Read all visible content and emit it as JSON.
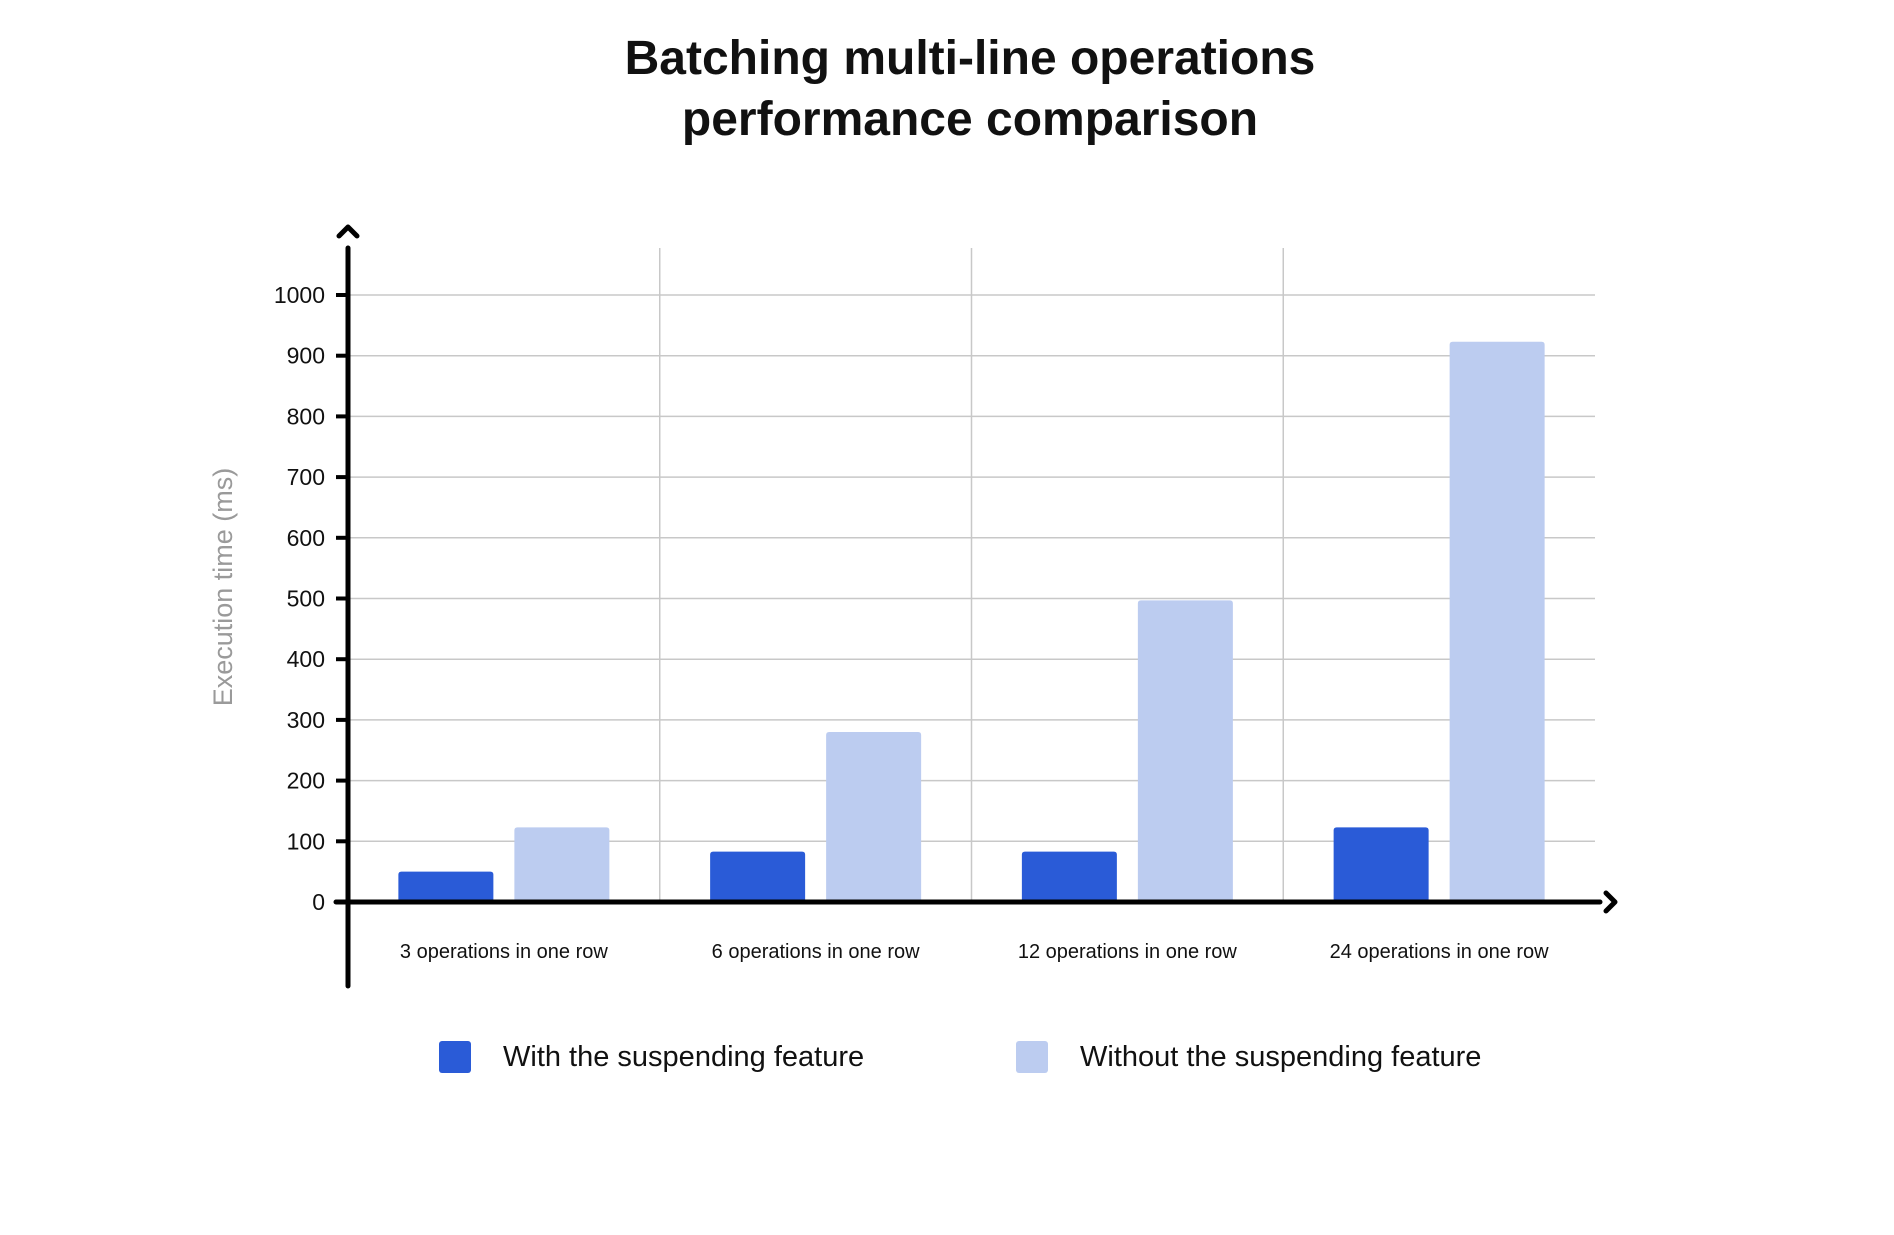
{
  "chart_data": {
    "type": "bar",
    "title": [
      "Batching multi-line operations",
      "performance comparison"
    ],
    "xlabel": "",
    "ylabel": "Execution time (ms)",
    "categories": [
      "3 operations in one row",
      "6 operations in one row",
      "12 operations in one row",
      "24 operations in one row"
    ],
    "series": [
      {
        "name": "With the suspending feature",
        "color": "#2A5BD7",
        "values": [
          50,
          83,
          83,
          123
        ]
      },
      {
        "name": "Without the suspending feature",
        "color": "#BCCCF0",
        "values": [
          123,
          280,
          497,
          923
        ]
      }
    ],
    "ylim": [
      0,
      1000
    ],
    "yticks": [
      0,
      100,
      200,
      300,
      400,
      500,
      600,
      700,
      800,
      900,
      1000
    ],
    "grid": true,
    "legend_position": "bottom"
  }
}
